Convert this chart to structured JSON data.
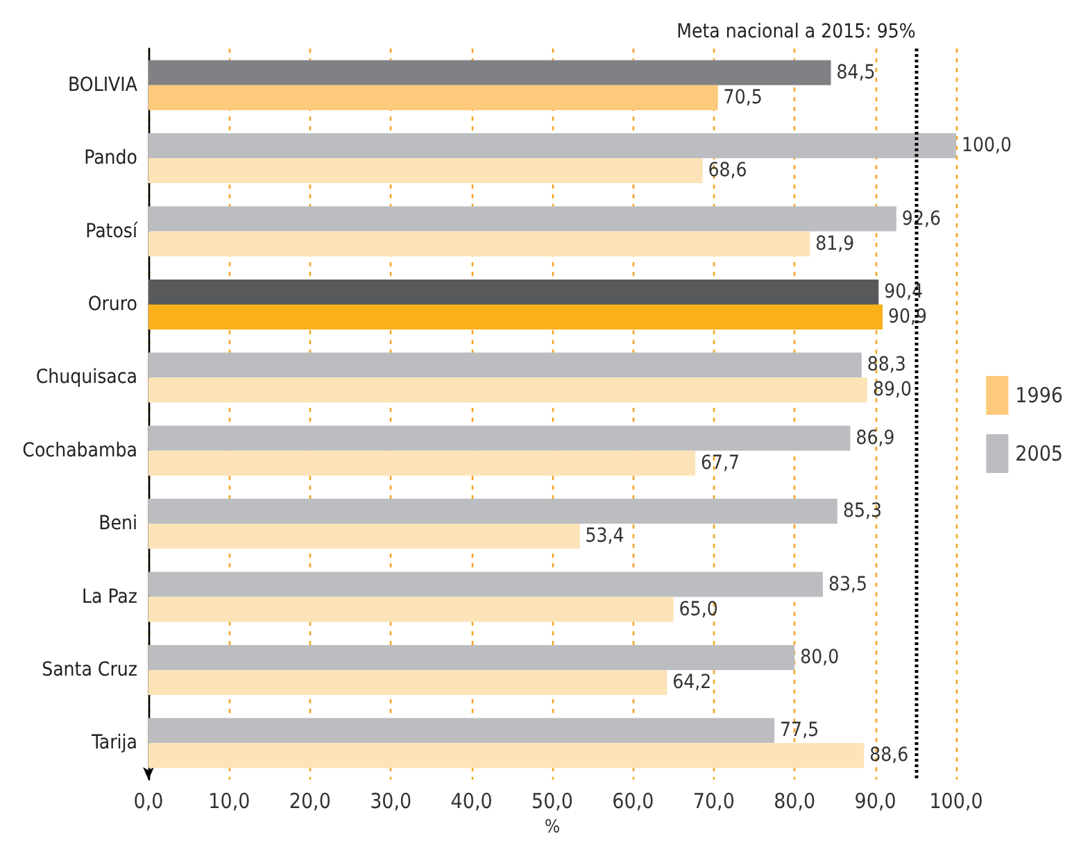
{
  "chart_data": {
    "type": "bar",
    "orientation": "horizontal",
    "categories": [
      "BOLIVIA",
      "Pando",
      "Patosí",
      "Oruro",
      "Chuquisaca",
      "Cochabamba",
      "Beni",
      "La Paz",
      "Santa Cruz",
      "Tarija"
    ],
    "series": [
      {
        "name": "2005",
        "color": "#bcbdc1",
        "colors": [
          "#808184",
          "#bcbdc1",
          "#bcbdc1",
          "#58595b",
          "#bcbdc1",
          "#bcbdc1",
          "#bcbdc1",
          "#bcbdc1",
          "#bcbdc1",
          "#bcbdc1"
        ],
        "values": [
          84.5,
          100.0,
          92.6,
          90.4,
          88.3,
          86.9,
          85.3,
          83.5,
          80.0,
          77.5
        ],
        "value_labels": [
          "84,5",
          "100,0",
          "92,6",
          "90,4",
          "88,3",
          "86,9",
          "85,3",
          "83,5",
          "80,0",
          "77,5"
        ]
      },
      {
        "name": "1996",
        "color": "#fdc97a",
        "colors": [
          "#fdc97a",
          "#fde3b8",
          "#fde3b8",
          "#f9b01b",
          "#fde3b8",
          "#fde3b8",
          "#fde3b8",
          "#fde3b8",
          "#fde3b8",
          "#fde3b8"
        ],
        "values": [
          70.5,
          68.6,
          81.9,
          90.9,
          89.0,
          67.7,
          53.4,
          65.0,
          64.2,
          88.6
        ],
        "value_labels": [
          "70,5",
          "68,6",
          "81,9",
          "90,9",
          "89,0",
          "67,7",
          "53,4",
          "65,0",
          "64,2",
          "88,6"
        ]
      }
    ],
    "xlabel": "%",
    "xlim": [
      0,
      100
    ],
    "xticks": [
      {
        "value": 0,
        "label": "0,0"
      },
      {
        "value": 10,
        "label": "10,0"
      },
      {
        "value": 20,
        "label": "20,0"
      },
      {
        "value": 30,
        "label": "30,0"
      },
      {
        "value": 40,
        "label": "40,0"
      },
      {
        "value": 50,
        "label": "50,0"
      },
      {
        "value": 60,
        "label": "60,0"
      },
      {
        "value": 70,
        "label": "70,0"
      },
      {
        "value": 80,
        "label": "80,0"
      },
      {
        "value": 90,
        "label": "90,0"
      },
      {
        "value": 100,
        "label": "100,0"
      }
    ],
    "ref_lines": [
      {
        "axis": "x",
        "value": 95,
        "label": "Meta nacional a 2015: 95%",
        "color": "#000000",
        "line_style": "dotted"
      }
    ],
    "grid": "x",
    "legend": "right"
  }
}
